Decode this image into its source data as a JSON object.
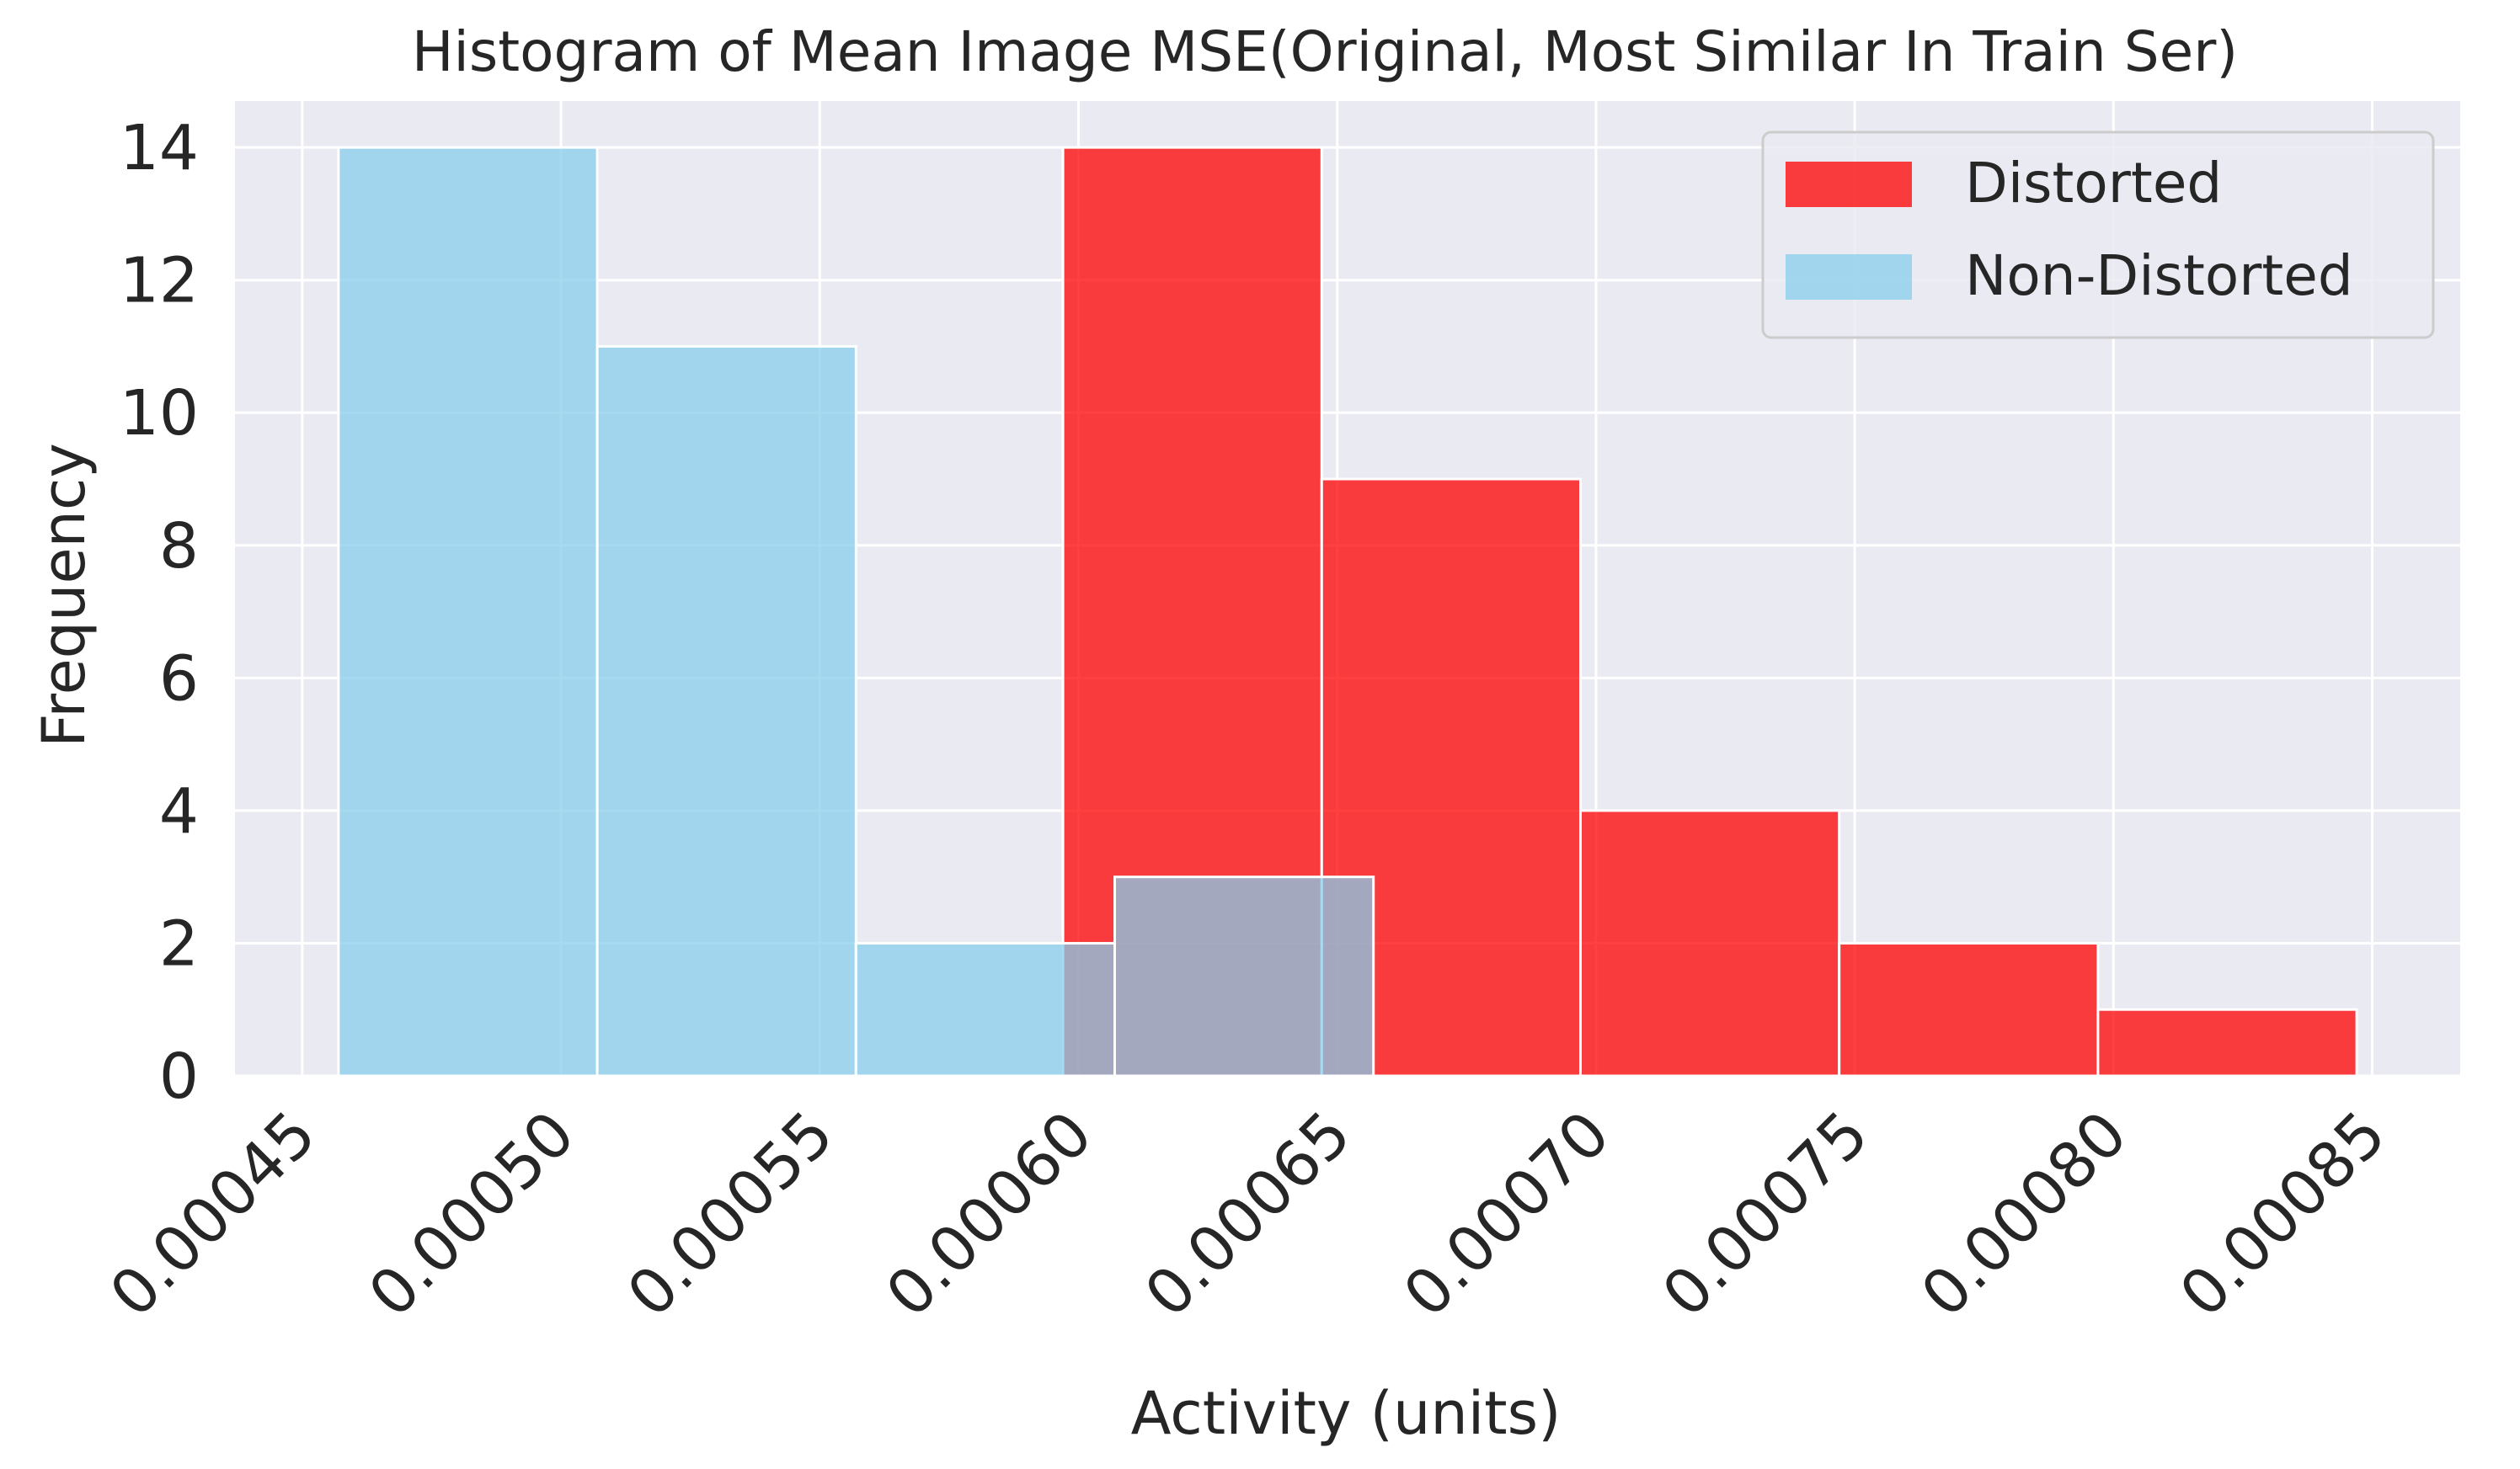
{
  "chart_data": {
    "type": "bar",
    "title": "Histogram of Mean Image MSE(Original, Most Similar In Train Ser)",
    "xlabel": "Activity (units)",
    "ylabel": "Frequency",
    "xlim": [
      0.000437,
      0.000867
    ],
    "ylim": [
      0,
      14.7
    ],
    "xticks": [
      0.00045,
      0.0005,
      0.00055,
      0.0006,
      0.00065,
      0.0007,
      0.00075,
      0.0008,
      0.00085
    ],
    "xtick_labels": [
      "0.00045",
      "0.00050",
      "0.00055",
      "0.00060",
      "0.00065",
      "0.00070",
      "0.00075",
      "0.00080",
      "0.00085"
    ],
    "yticks": [
      0,
      2,
      4,
      6,
      8,
      10,
      12,
      14
    ],
    "ytick_labels": [
      "0",
      "2",
      "4",
      "6",
      "8",
      "10",
      "12",
      "14"
    ],
    "grid": true,
    "legend_position": "top-right",
    "series": [
      {
        "name": "Distorted",
        "color": "#ff0000",
        "bin_edges": [
          0.000597,
          0.000647,
          0.000697,
          0.000747,
          0.000797,
          0.000847
        ],
        "counts": [
          14,
          9,
          4,
          2,
          1
        ]
      },
      {
        "name": "Non-Distorted",
        "color": "#87ceeb",
        "bin_edges": [
          0.000457,
          0.000507,
          0.000557,
          0.000607,
          0.000657
        ],
        "counts": [
          14,
          11,
          2,
          3
        ]
      }
    ]
  }
}
